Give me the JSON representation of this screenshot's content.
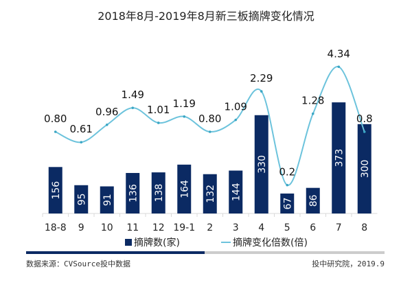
{
  "chart_data": {
    "type": "bar+line",
    "title": "2018年8月-2019年8月新三板摘牌变化情况",
    "categories": [
      "18-8",
      "9",
      "10",
      "11",
      "12",
      "19-1",
      "2",
      "3",
      "4",
      "5",
      "6",
      "7",
      "8"
    ],
    "series": [
      {
        "name": "摘牌数(家)",
        "type": "bar",
        "color": "#0b2a63",
        "values": [
          156,
          95,
          91,
          136,
          138,
          164,
          132,
          144,
          330,
          67,
          86,
          373,
          300
        ]
      },
      {
        "name": "摘牌变化倍数(倍)",
        "type": "line",
        "color": "#6cc3dc",
        "values": [
          0.8,
          0.61,
          0.96,
          1.49,
          1.01,
          1.19,
          0.8,
          1.09,
          2.29,
          0.2,
          1.28,
          4.34,
          0.8
        ],
        "labels": [
          "0.80",
          "0.61",
          "0.96",
          "1.49",
          "1.01",
          "1.19",
          "0.80",
          "1.09",
          "2.29",
          "0.2",
          "1.28",
          "4.34",
          "0.8"
        ]
      }
    ],
    "legend": "bottom",
    "grid": false
  },
  "footer": {
    "source": "数据来源：CVSource投中数据",
    "credit": "投中研究院，2019.9"
  }
}
